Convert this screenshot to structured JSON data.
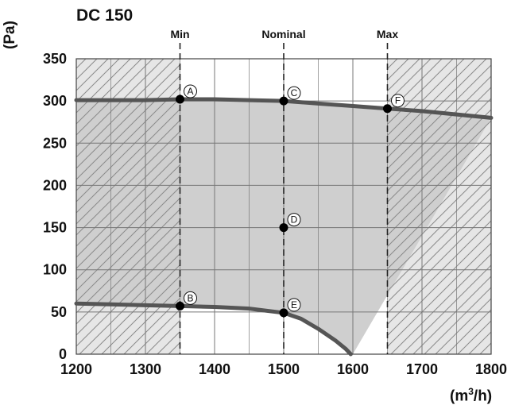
{
  "chart_data": {
    "type": "line",
    "title": "DC 150",
    "ylabel": "(Pa)",
    "xlabel_base": "(m",
    "xlabel_sup": "3",
    "xlabel_tail": "/h)",
    "xlim": [
      1200,
      1800
    ],
    "ylim": [
      0,
      350
    ],
    "x_ticks": [
      1200,
      1300,
      1400,
      1500,
      1600,
      1700,
      1800
    ],
    "y_ticks": [
      0,
      50,
      100,
      150,
      200,
      250,
      300,
      350
    ],
    "grid": true,
    "vertical_lines": [
      {
        "label": "Min",
        "x": 1350
      },
      {
        "label": "Nominal",
        "x": 1500
      },
      {
        "label": "Max",
        "x": 1650
      }
    ],
    "series": [
      {
        "points": [
          [
            1200,
            301
          ],
          [
            1300,
            301
          ],
          [
            1350,
            302
          ],
          [
            1400,
            302
          ],
          [
            1450,
            301
          ],
          [
            1500,
            300
          ],
          [
            1550,
            297
          ],
          [
            1600,
            294
          ],
          [
            1650,
            291
          ],
          [
            1700,
            288
          ],
          [
            1750,
            284
          ],
          [
            1800,
            280
          ]
        ]
      },
      {
        "points": [
          [
            1200,
            60
          ],
          [
            1250,
            59
          ],
          [
            1300,
            58
          ],
          [
            1350,
            57
          ],
          [
            1400,
            56
          ],
          [
            1450,
            54
          ],
          [
            1500,
            49
          ],
          [
            1525,
            42
          ],
          [
            1550,
            30
          ],
          [
            1575,
            16
          ],
          [
            1590,
            6
          ],
          [
            1597,
            0
          ]
        ]
      }
    ],
    "region_polygon": [
      [
        1200,
        301
      ],
      [
        1300,
        301
      ],
      [
        1350,
        302
      ],
      [
        1400,
        302
      ],
      [
        1450,
        301
      ],
      [
        1500,
        300
      ],
      [
        1550,
        297
      ],
      [
        1600,
        294
      ],
      [
        1650,
        291
      ],
      [
        1700,
        288
      ],
      [
        1750,
        284
      ],
      [
        1800,
        280
      ],
      [
        1600,
        0
      ],
      [
        1597,
        0
      ],
      [
        1590,
        6
      ],
      [
        1575,
        16
      ],
      [
        1550,
        30
      ],
      [
        1525,
        42
      ],
      [
        1500,
        49
      ],
      [
        1450,
        54
      ],
      [
        1400,
        56
      ],
      [
        1350,
        57
      ],
      [
        1300,
        58
      ],
      [
        1250,
        59
      ],
      [
        1200,
        60
      ]
    ],
    "hatched_ranges": [
      [
        1200,
        1350
      ],
      [
        1650,
        1800
      ]
    ],
    "points": [
      {
        "label": "A",
        "x": 1350,
        "y": 302
      },
      {
        "label": "B",
        "x": 1350,
        "y": 57
      },
      {
        "label": "C",
        "x": 1500,
        "y": 300
      },
      {
        "label": "D",
        "x": 1500,
        "y": 150
      },
      {
        "label": "E",
        "x": 1500,
        "y": 49
      },
      {
        "label": "F",
        "x": 1650,
        "y": 291
      }
    ],
    "colors": {
      "curve": "#555555",
      "region": "#cfcfcf",
      "hatch_bg": "#e6e6e6",
      "grid": "#777777",
      "point": "#000000"
    }
  }
}
